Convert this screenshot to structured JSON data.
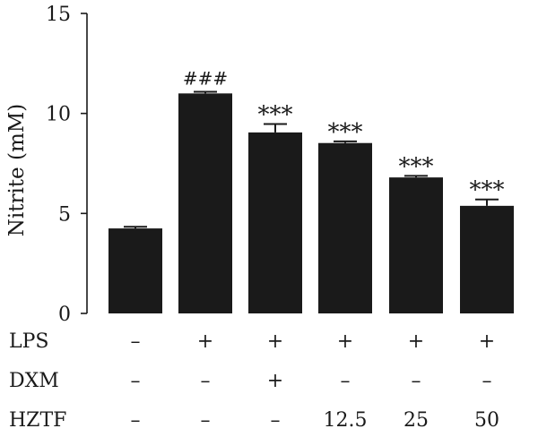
{
  "chart_data": {
    "type": "bar",
    "title": "",
    "xlabel": "",
    "ylabel": "Nitrite (mM)",
    "ylim": [
      0,
      15
    ],
    "yticks": [
      0,
      5,
      10,
      15
    ],
    "grid": false,
    "bar_color": "#1a1a1a",
    "values": [
      4.25,
      11.0,
      9.05,
      8.52,
      6.8,
      5.38
    ],
    "errors": [
      0.08,
      0.08,
      0.42,
      0.08,
      0.08,
      0.32
    ],
    "annotations": [
      "",
      "###",
      "***",
      "***",
      "***",
      "***"
    ],
    "treatment_rows": [
      {
        "label": "LPS",
        "values": [
          "–",
          "+",
          "+",
          "+",
          "+",
          "+"
        ]
      },
      {
        "label": "DXM",
        "values": [
          "–",
          "–",
          "+",
          "–",
          "–",
          "–"
        ]
      },
      {
        "label": "HZTF",
        "values": [
          "–",
          "–",
          "–",
          "12.5",
          "25",
          "50"
        ]
      }
    ]
  }
}
